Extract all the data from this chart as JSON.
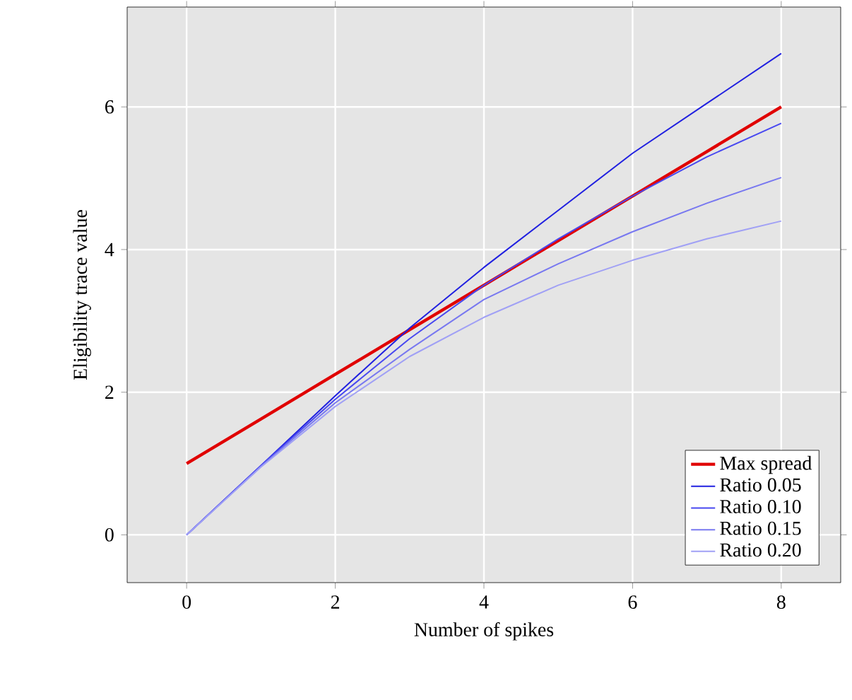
{
  "chart_data": {
    "type": "line",
    "xlabel": "Number of spikes",
    "ylabel": "Eligibility trace value",
    "x": [
      0,
      1,
      2,
      3,
      4,
      5,
      6,
      7,
      8
    ],
    "series": [
      {
        "name": "Max spread",
        "color": "#e00000",
        "values": [
          1,
          1.625,
          2.25,
          2.875,
          3.5,
          4.125,
          4.75,
          5.375,
          6
        ]
      },
      {
        "name": "Ratio 0.05",
        "color": "#2020e0",
        "values": [
          0,
          0.97,
          1.95,
          2.9,
          3.75,
          4.55,
          5.35,
          6.05,
          6.75
        ]
      },
      {
        "name": "Ratio 0.10",
        "color": "#4848f0",
        "values": [
          0,
          0.97,
          1.9,
          2.75,
          3.5,
          4.15,
          4.75,
          5.3,
          5.77
        ]
      },
      {
        "name": "Ratio 0.15",
        "color": "#7878f0",
        "values": [
          0,
          0.96,
          1.85,
          2.6,
          3.3,
          3.8,
          4.25,
          4.65,
          5.01
        ]
      },
      {
        "name": "Ratio 0.20",
        "color": "#a0a0f5",
        "values": [
          0,
          0.95,
          1.8,
          2.5,
          3.05,
          3.5,
          3.85,
          4.15,
          4.4
        ]
      }
    ],
    "xlim": [
      -0.8,
      8.8
    ],
    "ylim": [
      -0.67,
      7.4
    ],
    "xticks": [
      0,
      2,
      4,
      6,
      8
    ],
    "yticks": [
      0,
      2,
      4,
      6
    ],
    "grid": true,
    "legend": "bottom right",
    "marker": "none",
    "line_style": "solid"
  }
}
